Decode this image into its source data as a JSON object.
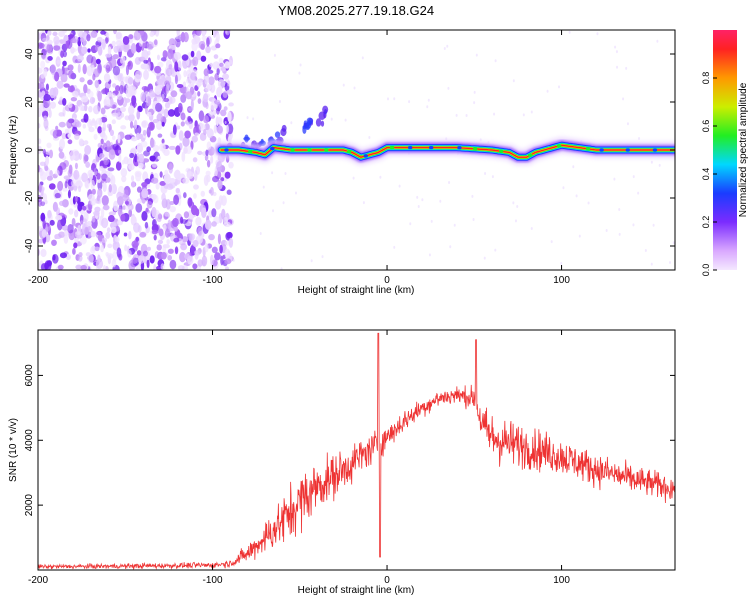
{
  "title": "YM08.2025.277.19.18.G24",
  "colors": {
    "snr_line": "#ee3333",
    "noise_purple": "#7a2cff",
    "axis": "#000000"
  },
  "chart_data": [
    {
      "type": "heatmap",
      "name": "spectrogram",
      "xlabel": "Height of straight line (km)",
      "ylabel": "Frequency (Hz)",
      "xlim": [
        -200,
        165
      ],
      "ylim": [
        -50,
        50
      ],
      "xticks": [
        -200,
        -100,
        0,
        100
      ],
      "yticks": [
        -40,
        -20,
        0,
        20,
        40
      ],
      "noise_region_x": [
        -200,
        -95
      ],
      "ridge": {
        "x": [
          -95,
          -85,
          -75,
          -70,
          -65,
          -55,
          -45,
          -35,
          -25,
          -20,
          -15,
          -5,
          0,
          20,
          40,
          60,
          70,
          75,
          80,
          85,
          90,
          100,
          110,
          120,
          140,
          165
        ],
        "freq": [
          0,
          0,
          -1,
          -2,
          1,
          0,
          0,
          0,
          0,
          -1,
          -3,
          -1,
          1,
          1,
          1,
          0,
          -1,
          -3,
          -3,
          -1,
          0,
          2,
          1,
          0,
          0,
          0
        ]
      },
      "colorbar": {
        "label": "Normalized spectral amplitude",
        "range": [
          0,
          1
        ],
        "ticks": [
          0.0,
          0.2,
          0.4,
          0.6,
          0.8
        ],
        "tick_labels": [
          "0.0",
          "0.2",
          "0.4",
          "0.6",
          "0.8"
        ]
      }
    },
    {
      "type": "line",
      "name": "snr",
      "xlabel": "Height of straight line (km)",
      "ylabel": "SNR (10 * v/v)",
      "xlim": [
        -200,
        165
      ],
      "ylim": [
        0,
        7400
      ],
      "xticks": [
        -200,
        -100,
        0,
        100
      ],
      "yticks": [
        2000,
        4000,
        6000
      ],
      "envelope": {
        "x": [
          -200,
          -150,
          -100,
          -90,
          -80,
          -70,
          -60,
          -50,
          -40,
          -30,
          -20,
          -10,
          0,
          10,
          20,
          30,
          40,
          50,
          55,
          60,
          70,
          80,
          100,
          120,
          140,
          165
        ],
        "mean": [
          100,
          120,
          150,
          200,
          500,
          1000,
          1500,
          2100,
          2600,
          2900,
          3300,
          3700,
          4100,
          4600,
          5000,
          5300,
          5400,
          5300,
          4400,
          4100,
          3900,
          3800,
          3500,
          3100,
          2800,
          2500
        ],
        "spread": [
          60,
          70,
          80,
          100,
          250,
          450,
          700,
          800,
          700,
          600,
          550,
          450,
          350,
          300,
          250,
          250,
          250,
          300,
          600,
          700,
          650,
          600,
          500,
          450,
          400,
          350
        ]
      },
      "spikes": [
        {
          "x": -5,
          "value": 7300
        },
        {
          "x": -4,
          "value": 400
        },
        {
          "x": 51,
          "value": 7100
        }
      ]
    }
  ]
}
